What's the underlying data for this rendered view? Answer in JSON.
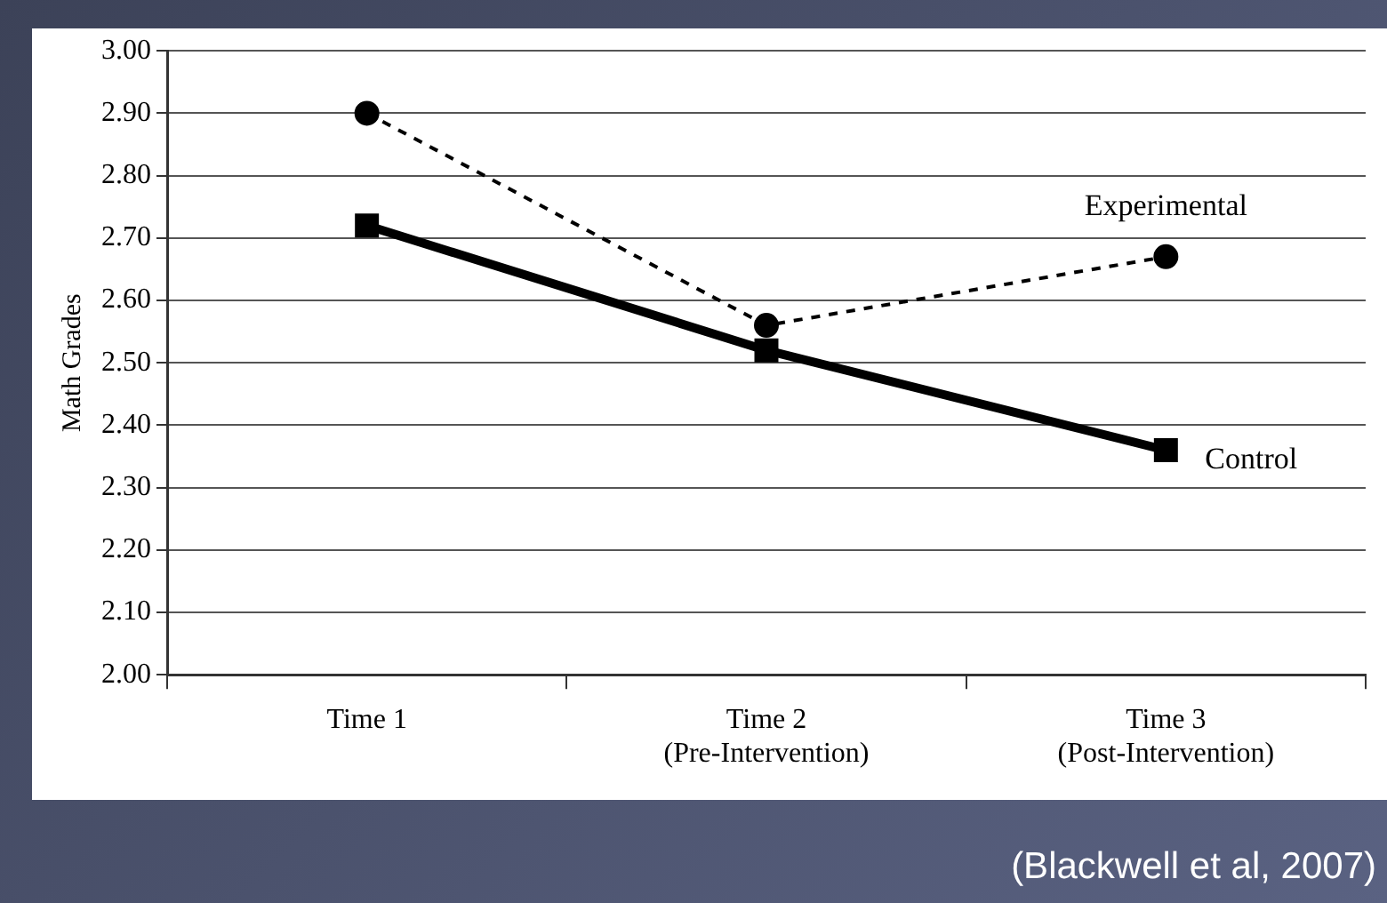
{
  "chart_data": {
    "type": "line",
    "ylabel": "Math Grades",
    "categories": [
      "Time 1",
      "Time 2\n(Pre-Intervention)",
      "Time 3\n(Post-Intervention)"
    ],
    "series": [
      {
        "name": "Experimental",
        "color": "#000000",
        "values": [
          2.9,
          2.56,
          2.67
        ],
        "marker": "circle",
        "line_style": "dashed"
      },
      {
        "name": "Control",
        "color": "#000000",
        "values": [
          2.72,
          2.52,
          2.36
        ],
        "marker": "square",
        "line_style": "solid"
      }
    ],
    "ylim": [
      2.0,
      3.0
    ],
    "yticks": [
      {
        "value": 2.0,
        "label": "2.00"
      },
      {
        "value": 2.1,
        "label": "2.10"
      },
      {
        "value": 2.2,
        "label": "2.20"
      },
      {
        "value": 2.3,
        "label": "2.30"
      },
      {
        "value": 2.4,
        "label": "2.40"
      },
      {
        "value": 2.5,
        "label": "2.50"
      },
      {
        "value": 2.6,
        "label": "2.60"
      },
      {
        "value": 2.7,
        "label": "2.70"
      },
      {
        "value": 2.8,
        "label": "2.80"
      },
      {
        "value": 2.9,
        "label": "2.90"
      },
      {
        "value": 3.0,
        "label": "3.00"
      }
    ],
    "grid": "y",
    "legend": false,
    "annotations": [
      "(Blackwell et al, 2007)"
    ]
  }
}
